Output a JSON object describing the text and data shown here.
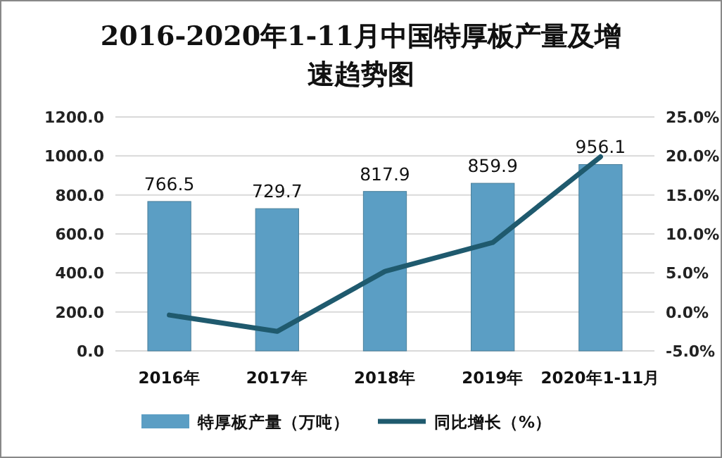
{
  "chart_data": {
    "type": "bar",
    "title": "2016-2020年1-11月中国特厚板产量及增速趋势图",
    "categories": [
      "2016年",
      "2017年",
      "2018年",
      "2019年",
      "2020年1-11月"
    ],
    "series": [
      {
        "name": "特厚板产量（万吨）",
        "color": "#5b9ec4",
        "values": [
          766.5,
          729.7,
          817.9,
          859.9,
          956.1
        ],
        "value_labels": [
          "766.5",
          "729.7",
          "817.9",
          "859.9",
          "956.1"
        ]
      },
      {
        "name": "同比增长（%）",
        "type": "line",
        "axis": "y2",
        "color": "#1f5a6e",
        "values": [
          -0.4,
          -2.5,
          5.2,
          8.9,
          19.9
        ]
      }
    ],
    "ylim": [
      0,
      1200
    ],
    "yticks": [
      {
        "value": 0,
        "label": "0.0"
      },
      {
        "value": 200,
        "label": "200.0"
      },
      {
        "value": 400,
        "label": "400.0"
      },
      {
        "value": 600,
        "label": "600.0"
      },
      {
        "value": 800,
        "label": "800.0"
      },
      {
        "value": 1000,
        "label": "1000.0"
      },
      {
        "value": 1200,
        "label": "1200.0"
      }
    ],
    "y2lim": [
      -5,
      25
    ],
    "y2ticks": [
      {
        "value": -5,
        "label": "-5.0%"
      },
      {
        "value": 0,
        "label": "0.0%"
      },
      {
        "value": 5,
        "label": "5.0%"
      },
      {
        "value": 10,
        "label": "10.0%"
      },
      {
        "value": 15,
        "label": "15.0%"
      },
      {
        "value": 20,
        "label": "20.0%"
      },
      {
        "value": 25,
        "label": "25.0%"
      }
    ],
    "grid": "y",
    "legend": "bottom",
    "marker": "none",
    "line_style": "solid"
  }
}
